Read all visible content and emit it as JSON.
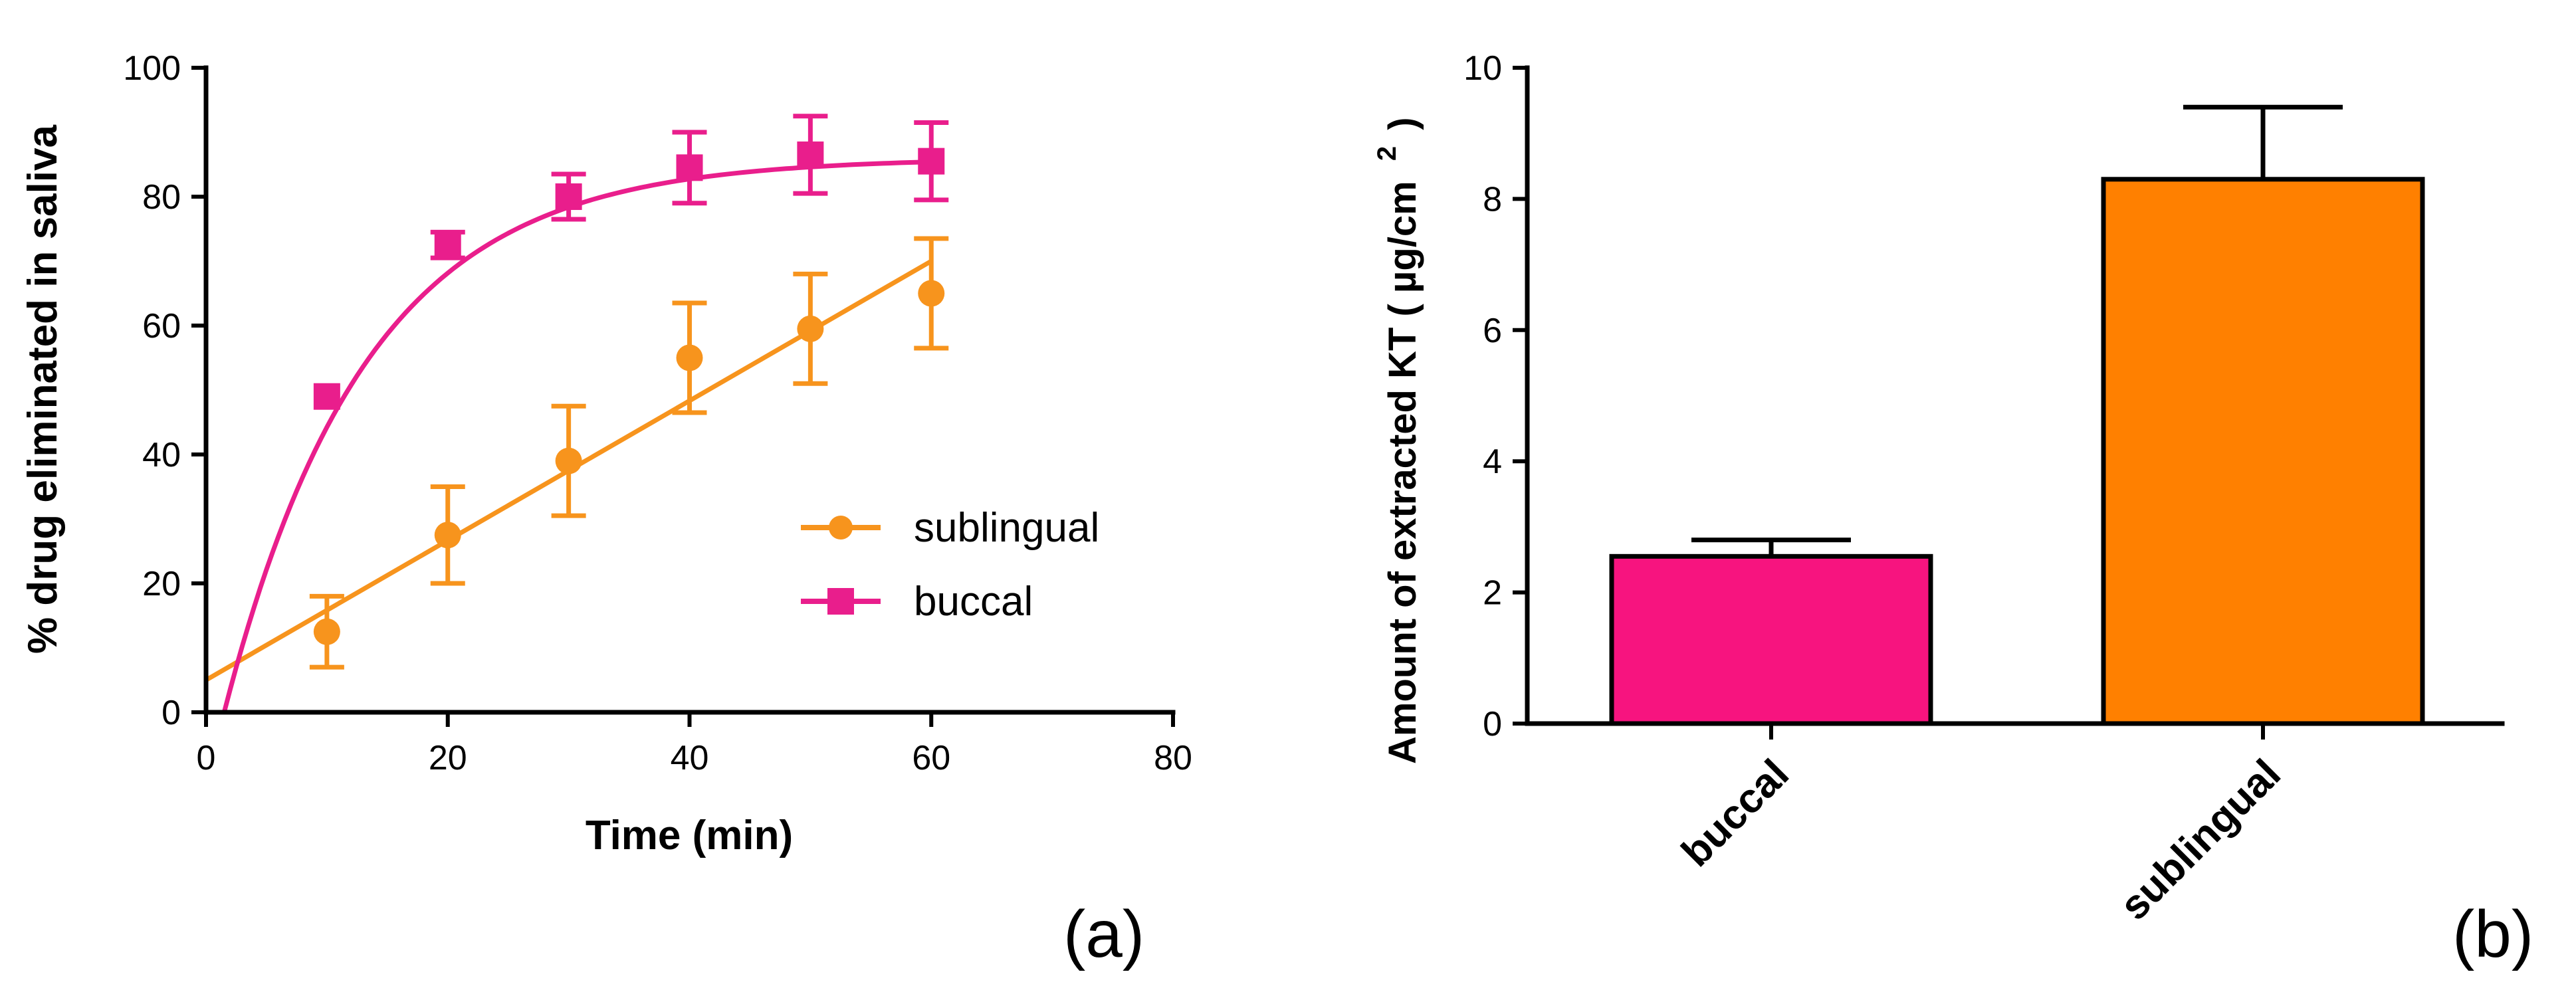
{
  "chart_data": [
    {
      "type": "line",
      "panel_label": "(a)",
      "xlabel": "Time (min)",
      "ylabel": "% drug eliminated in saliva",
      "xlim": [
        0,
        80
      ],
      "ylim": [
        0,
        100
      ],
      "xticks": [
        "0",
        "20",
        "40",
        "60",
        "80"
      ],
      "yticks": [
        "0",
        "20",
        "40",
        "60",
        "80",
        "100"
      ],
      "legend_position": "right-middle",
      "series": [
        {
          "name": "sublingual",
          "color": "#f7941d",
          "marker": "circle",
          "fit": "linear",
          "fit_line": {
            "x": [
              0,
              60
            ],
            "y": [
              5,
              70
            ]
          },
          "x": [
            10,
            20,
            30,
            40,
            50,
            60
          ],
          "y": [
            12.5,
            27.5,
            39,
            55,
            59.5,
            65
          ],
          "err": [
            5.5,
            7.5,
            8.5,
            8.5,
            8.5,
            8.5
          ]
        },
        {
          "name": "buccal",
          "color": "#e91e8c",
          "marker": "square",
          "fit": "exponential",
          "fit_params": {
            "plateau": 86,
            "k": 0.085,
            "x0": 1.5
          },
          "x": [
            10,
            20,
            30,
            40,
            50,
            60
          ],
          "y": [
            49,
            72.5,
            80,
            84.5,
            86.5,
            85.5
          ],
          "err": [
            0,
            2,
            3.5,
            5.5,
            6,
            6
          ]
        }
      ]
    },
    {
      "type": "bar",
      "panel_label": "(b)",
      "ylabel": "Amount of extracted KT ( µg/cm",
      "ylabel_sup": "2",
      "ylabel_close": ")",
      "ylim": [
        0,
        10
      ],
      "yticks": [
        "0",
        "2",
        "4",
        "6",
        "8",
        "10"
      ],
      "categories": [
        "buccal",
        "sublingual"
      ],
      "values": [
        2.55,
        8.3
      ],
      "err": [
        0.25,
        1.1
      ],
      "colors": [
        "#f7147f",
        "#ff8000"
      ]
    }
  ]
}
